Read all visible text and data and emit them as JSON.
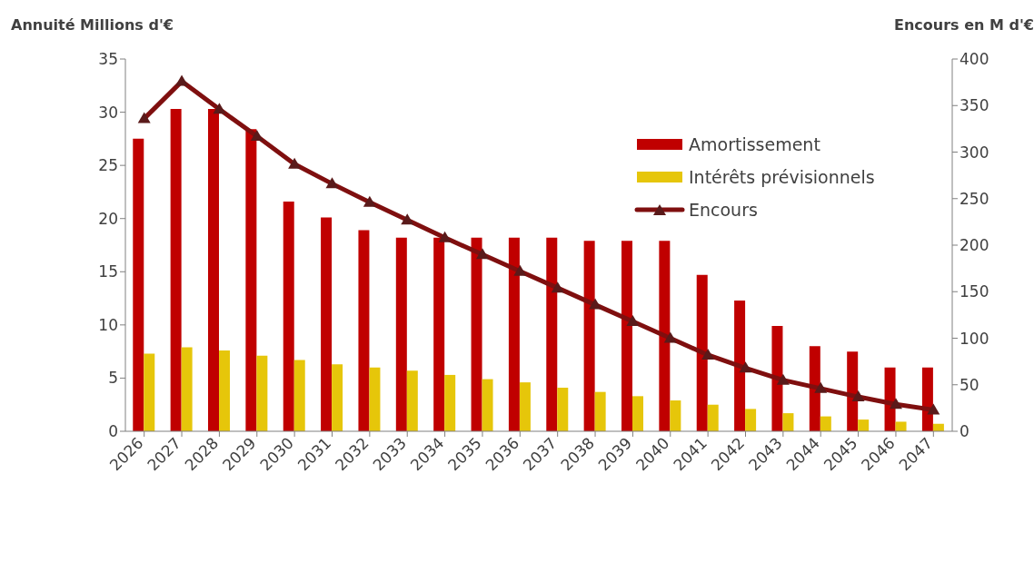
{
  "chart_data": {
    "type": "bar",
    "ylabel": "Annuité Millions d'€",
    "y2label": "Encours en M d'€",
    "categories": [
      "2026",
      "2027",
      "2028",
      "2029",
      "2030",
      "2031",
      "2032",
      "2033",
      "2034",
      "2035",
      "2036",
      "2037",
      "2038",
      "2039",
      "2040",
      "2041",
      "2042",
      "2043",
      "2044",
      "2045",
      "2046",
      "2047"
    ],
    "series": [
      {
        "name": "Amortissement",
        "color": "#c00000",
        "values": [
          27.5,
          30.3,
          30.3,
          28.4,
          21.6,
          20.1,
          18.9,
          18.2,
          18.2,
          18.2,
          18.2,
          18.2,
          17.9,
          17.9,
          17.9,
          14.7,
          12.3,
          9.9,
          8.0,
          7.5,
          6.0,
          6.0
        ]
      },
      {
        "name": "Intérêts prévisionnels",
        "color": "#e6c60a",
        "values": [
          7.3,
          7.9,
          7.6,
          7.1,
          6.7,
          6.3,
          6.0,
          5.7,
          5.3,
          4.9,
          4.6,
          4.1,
          3.7,
          3.3,
          2.9,
          2.5,
          2.1,
          1.7,
          1.4,
          1.1,
          0.9,
          0.7
        ]
      },
      {
        "name": "Encours",
        "type": "line",
        "axis": "y2",
        "color": "#7f0f0f",
        "marker": "triangle",
        "values": [
          336,
          376,
          346,
          317,
          287,
          266,
          246,
          227,
          208,
          190,
          172,
          154,
          136,
          118,
          100,
          82,
          68,
          55,
          46,
          37,
          29,
          23
        ]
      }
    ],
    "ylim": [
      0,
      35
    ],
    "yticks": [
      0,
      5,
      10,
      15,
      20,
      25,
      30,
      35
    ],
    "y2lim": [
      0,
      400
    ],
    "y2ticks": [
      0,
      50,
      100,
      150,
      200,
      250,
      300,
      350,
      400
    ],
    "grid": false,
    "legend": "right"
  }
}
